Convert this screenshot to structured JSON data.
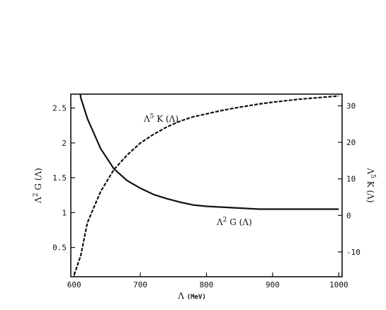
{
  "chart_data": {
    "type": "line",
    "x": [
      600,
      610,
      620,
      640,
      660,
      680,
      700,
      720,
      740,
      760,
      780,
      800,
      820,
      840,
      860,
      880,
      900,
      920,
      940,
      960,
      980,
      1000
    ],
    "series": [
      {
        "name": "Λ²G (Λ)",
        "axis": "left",
        "style": "solid",
        "values": [
          3.6,
          2.65,
          2.35,
          1.92,
          1.63,
          1.46,
          1.35,
          1.26,
          1.2,
          1.15,
          1.11,
          1.09,
          1.08,
          1.07,
          1.06,
          1.05,
          1.05,
          1.05,
          1.05,
          1.05,
          1.05,
          1.05
        ]
      },
      {
        "name": "Λ⁵K (Λ)",
        "axis": "right",
        "style": "dashed",
        "values": [
          -16.3,
          -11,
          -2,
          6.5,
          12.5,
          16.5,
          19.8,
          22.2,
          24.2,
          25.8,
          27.0,
          27.8,
          28.6,
          29.3,
          29.9,
          30.5,
          31.0,
          31.4,
          31.8,
          32.1,
          32.4,
          32.7
        ]
      }
    ],
    "xlim": [
      595,
      1005
    ],
    "ylim_left": [
      0.08,
      2.7
    ],
    "ylim_right": [
      -16.8,
      33.2
    ],
    "x_ticks": [
      "600",
      "700",
      "800",
      "900",
      "1000"
    ],
    "y_left_ticks": [
      "0.5",
      "1",
      "1.5",
      "2",
      "2.5"
    ],
    "y_right_ticks": [
      "-10",
      "0",
      "10",
      "20",
      "30"
    ],
    "xlabel": {
      "symbol": "Λ",
      "unit": "(MeV)"
    },
    "ylabel_left": {
      "base": "Λ",
      "exp": "2",
      "rest": "G (Λ)"
    },
    "ylabel_right": {
      "base": "Λ",
      "exp": "5",
      "rest": "K (Λ)"
    },
    "annotations": [
      {
        "base": "Λ",
        "exp": "5",
        "rest": "K (Λ)",
        "near": "dashed curve, upper middle"
      },
      {
        "base": "Λ",
        "exp": "2",
        "rest": "G (Λ)",
        "near": "solid curve, lower right"
      }
    ],
    "grid": false,
    "legend": "none"
  }
}
